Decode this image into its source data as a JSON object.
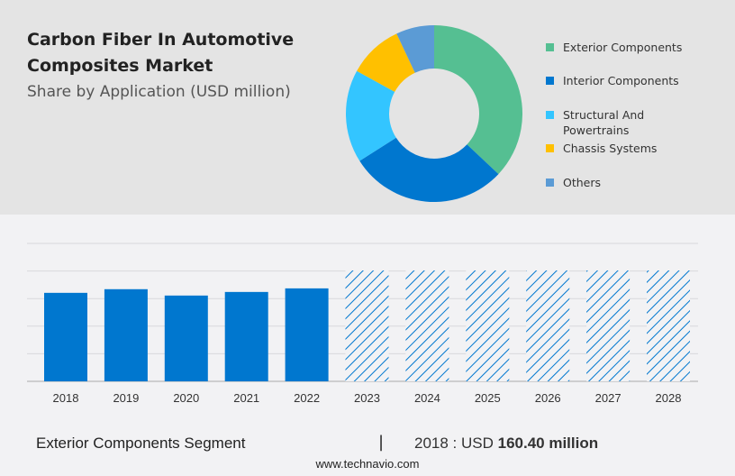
{
  "header": {
    "title": "Carbon Fiber In Automotive Composites Market",
    "subtitle": "Share by Application (USD million)"
  },
  "chart_data": [
    {
      "type": "pie",
      "style": "donut",
      "legend_position": "right",
      "categories": [
        "Exterior Components",
        "Interior Components",
        "Structural And Powertrains",
        "Chassis Systems",
        "Others"
      ],
      "values": [
        37,
        29,
        17,
        10,
        7
      ],
      "colors": [
        "#55bf92",
        "#0077cf",
        "#33c5ff",
        "#ffc000",
        "#5b9bd5"
      ]
    },
    {
      "type": "bar",
      "categories": [
        "2018",
        "2019",
        "2020",
        "2021",
        "2022",
        "2023",
        "2024",
        "2025",
        "2026",
        "2027",
        "2028"
      ],
      "values": [
        160.4,
        167,
        155.5,
        162,
        168.5,
        null,
        null,
        null,
        null,
        null,
        null
      ],
      "forecast": [
        false,
        false,
        false,
        false,
        false,
        true,
        true,
        true,
        true,
        true,
        true
      ],
      "ylim": [
        0,
        250
      ],
      "grid": true,
      "bar_color": "#0077cf"
    }
  ],
  "footer": {
    "segment": "Exterior Components Segment",
    "separator": "|",
    "year_label": "2018 : USD",
    "value": "160.40 million",
    "website": "www.technavio.com"
  }
}
